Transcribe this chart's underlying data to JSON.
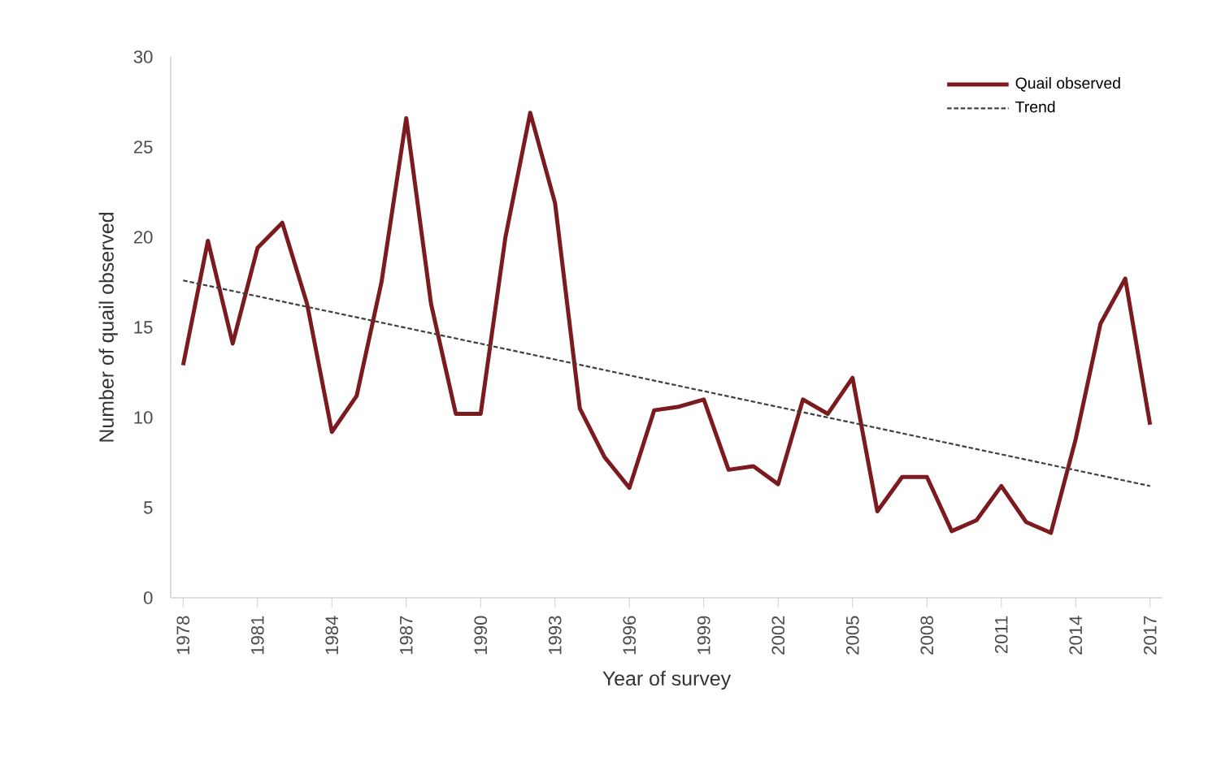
{
  "chart_data": {
    "type": "line",
    "xlabel": "Year of survey",
    "ylabel": "Number of quail observed",
    "x": [
      1978,
      1979,
      1980,
      1981,
      1982,
      1983,
      1984,
      1985,
      1986,
      1987,
      1988,
      1989,
      1990,
      1991,
      1992,
      1993,
      1994,
      1995,
      1996,
      1997,
      1998,
      1999,
      2000,
      2001,
      2002,
      2003,
      2004,
      2005,
      2006,
      2007,
      2008,
      2009,
      2010,
      2011,
      2012,
      2013,
      2014,
      2015,
      2016,
      2017
    ],
    "series": [
      {
        "name": "Quail observed",
        "color": "#7b1a1f",
        "line_style": "solid",
        "values": [
          12.9,
          19.8,
          14.1,
          19.4,
          20.8,
          16.3,
          9.2,
          11.2,
          17.5,
          26.6,
          16.3,
          10.2,
          10.2,
          20.0,
          26.9,
          21.9,
          10.5,
          7.8,
          6.1,
          10.4,
          10.6,
          11.0,
          7.1,
          7.3,
          6.3,
          11.0,
          10.2,
          12.2,
          4.8,
          6.7,
          6.7,
          3.7,
          4.3,
          6.2,
          4.2,
          3.6,
          8.8,
          15.2,
          17.7,
          9.6
        ]
      },
      {
        "name": "Trend",
        "color": "#404040",
        "line_style": "dashed",
        "x": [
          1978,
          2017
        ],
        "values": [
          17.6,
          6.2
        ]
      }
    ],
    "xlim": [
      1977.5,
      2017.5
    ],
    "xticks": [
      1978,
      1981,
      1984,
      1987,
      1990,
      1993,
      1996,
      1999,
      2002,
      2005,
      2008,
      2011,
      2014,
      2017
    ],
    "ylim": [
      0,
      30
    ],
    "yticks": [
      0,
      5,
      10,
      15,
      20,
      25,
      30
    ],
    "grid": false,
    "legend": "top right",
    "marker": "none"
  }
}
